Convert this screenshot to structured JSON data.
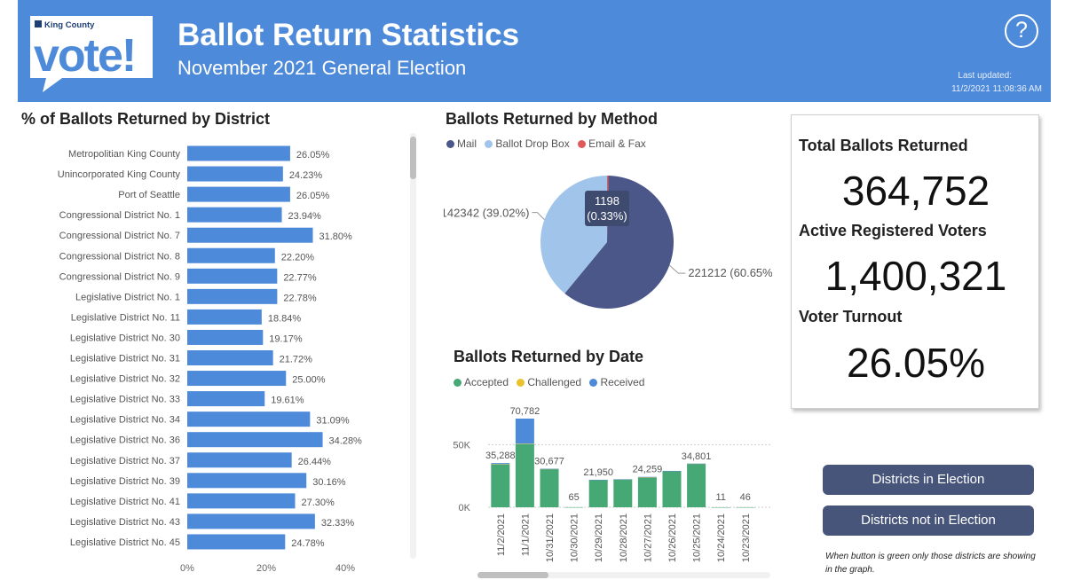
{
  "header": {
    "logo_top": "King County",
    "logo_word": "vote!",
    "title": "Ballot Return Statistics",
    "subtitle": "November 2021 General Election",
    "help_label": "?",
    "last_updated_label": "Last updated:",
    "last_updated_value": "11/2/2021 11:08:36 AM"
  },
  "colors": {
    "header_bg": "#4d8ad9",
    "bar_blue": "#4d8ad9",
    "mail": "#4a5788",
    "drop_box": "#a0c4ea",
    "email_fax": "#e05a5a",
    "accepted": "#46a875",
    "challenged": "#e8c22c",
    "received": "#4d8ad9",
    "button_bg": "#48557b"
  },
  "summary": {
    "total_label": "Total Ballots Returned",
    "total_value": "364,752",
    "voters_label": "Active Registered Voters",
    "voters_value": "1,400,321",
    "turnout_label": "Voter Turnout",
    "turnout_value": "26.05%"
  },
  "buttons": {
    "in_election": "Districts in Election",
    "not_in_election": "Districts not in Election"
  },
  "note": "When button is green only those districts are showing in the graph.",
  "chart_data": [
    {
      "type": "bar",
      "orientation": "horizontal",
      "title": "% of Ballots Returned by District",
      "categories": [
        "Metropolitian King County",
        "Unincorporated King County",
        "Port of Seattle",
        "Congressional District No. 1",
        "Congressional District No. 7",
        "Congressional District No. 8",
        "Congressional District No. 9",
        "Legislative District No. 1",
        "Legislative District No. 11",
        "Legislative District No. 30",
        "Legislative District No. 31",
        "Legislative District No. 32",
        "Legislative District No. 33",
        "Legislative District No. 34",
        "Legislative District No. 36",
        "Legislative District No. 37",
        "Legislative District No. 39",
        "Legislative District No. 41",
        "Legislative District No. 43",
        "Legislative District No. 45"
      ],
      "values": [
        26.05,
        24.23,
        26.05,
        23.94,
        31.8,
        22.2,
        22.77,
        22.78,
        18.84,
        19.17,
        21.72,
        25.0,
        19.61,
        31.09,
        34.28,
        26.44,
        30.16,
        27.3,
        32.33,
        24.78
      ],
      "value_labels": [
        "26.05%",
        "24.23%",
        "26.05%",
        "23.94%",
        "31.80%",
        "22.20%",
        "22.77%",
        "22.78%",
        "18.84%",
        "19.17%",
        "21.72%",
        "25.00%",
        "19.61%",
        "31.09%",
        "34.28%",
        "26.44%",
        "30.16%",
        "27.30%",
        "32.33%",
        "24.78%"
      ],
      "xlim": [
        0,
        40
      ],
      "xticks": [
        "0%",
        "20%",
        "40%"
      ],
      "xlabel": "",
      "ylabel": ""
    },
    {
      "type": "pie",
      "title": "Ballots Returned by Method",
      "legend": [
        "Mail",
        "Ballot Drop Box",
        "Email & Fax"
      ],
      "slices": [
        {
          "name": "Mail",
          "value": 221212,
          "label": "221212 (60.65%)"
        },
        {
          "name": "Ballot Drop Box",
          "value": 142342,
          "label": "142342 (39.02%)"
        },
        {
          "name": "Email & Fax",
          "value": 1198,
          "label": "1198",
          "label2": "(0.33%)"
        }
      ]
    },
    {
      "type": "bar",
      "stacked": true,
      "title": "Ballots Returned by Date",
      "legend": [
        "Accepted",
        "Challenged",
        "Received"
      ],
      "categories": [
        "11/2/2021",
        "11/1/2021",
        "10/31/2021",
        "10/30/2021",
        "10/29/2021",
        "10/28/2021",
        "10/27/2021",
        "10/26/2021",
        "10/25/2021",
        "10/24/2021",
        "10/23/2021"
      ],
      "series": [
        {
          "name": "Accepted",
          "values": [
            34300,
            50500,
            30600,
            65,
            21900,
            22300,
            23800,
            29000,
            34750,
            11,
            46
          ]
        },
        {
          "name": "Challenged",
          "values": [
            200,
            300,
            20,
            0,
            20,
            20,
            20,
            20,
            20,
            0,
            0
          ]
        },
        {
          "name": "Received",
          "values": [
            788,
            19982,
            57,
            0,
            30,
            30,
            439,
            30,
            31,
            0,
            0
          ]
        }
      ],
      "totals_labels": [
        "35,288",
        "70,782",
        "30,677",
        "65",
        "21,950",
        "",
        "24,259",
        "",
        "34,801",
        "11",
        "46"
      ],
      "ylim": [
        0,
        70782
      ],
      "yticks": [
        "0K",
        "50K"
      ],
      "xlabel": "",
      "ylabel": ""
    }
  ]
}
